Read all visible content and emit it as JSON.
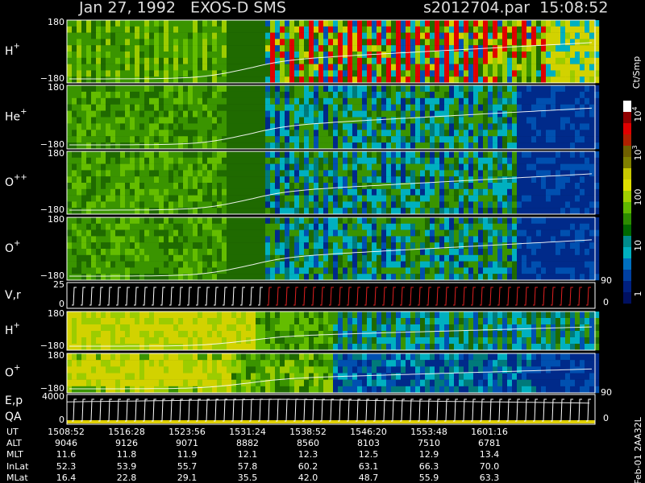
{
  "header": {
    "title": "Jan 27, 1992   EXOS-D SMS",
    "file": "s2012704.par  15:08:52"
  },
  "panels": [
    {
      "label": "H",
      "sup": "+",
      "ticks": [
        "180",
        "−180"
      ]
    },
    {
      "label": "He",
      "sup": "+",
      "ticks": [
        "180",
        "−180"
      ]
    },
    {
      "label": "O",
      "sup": "++",
      "ticks": [
        "180",
        "−180"
      ]
    },
    {
      "label": "O",
      "sup": "+",
      "ticks": [
        "180",
        "−180"
      ]
    },
    {
      "label": "V,r",
      "ticks": [
        "25",
        "0"
      ],
      "right_ticks": [
        "90",
        "0"
      ]
    },
    {
      "label": "H",
      "sup": "+",
      "ticks": [
        "180",
        "−180"
      ]
    },
    {
      "label": "O",
      "sup": "+",
      "ticks": [
        "180",
        "−180"
      ]
    },
    {
      "label": "E,p",
      "label2": "QA",
      "ticks": [
        "4000",
        "0"
      ],
      "right_ticks": [
        "90",
        "0"
      ]
    }
  ],
  "colorbar": {
    "title": "Ct/Smp",
    "ticks": [
      {
        "base": "10",
        "exp": "4"
      },
      {
        "base": "10",
        "exp": "3"
      },
      {
        "base": "100"
      },
      {
        "base": "10"
      },
      {
        "base": "1"
      }
    ]
  },
  "footer_id": "Feb-01 2AA32L",
  "table": {
    "row_labels": [
      "UT",
      "ALT",
      "MLT",
      "InLat",
      "MLat"
    ],
    "rows": [
      [
        "1508:52",
        "1516:28",
        "1523:56",
        "1531:24",
        "1538:52",
        "1546:20",
        "1553:48",
        "1601:16"
      ],
      [
        "9046",
        "9126",
        "9071",
        "8882",
        "8560",
        "8103",
        "7510",
        "6781"
      ],
      [
        "11.6",
        "11.8",
        "11.9",
        "12.1",
        "12.3",
        "12.5",
        "12.9",
        "13.4"
      ],
      [
        "52.3",
        "53.9",
        "55.7",
        "57.8",
        "60.2",
        "63.1",
        "66.3",
        "70.0"
      ],
      [
        "16.4",
        "22.8",
        "29.1",
        "35.5",
        "42.0",
        "48.7",
        "55.9",
        "63.3"
      ]
    ]
  }
}
